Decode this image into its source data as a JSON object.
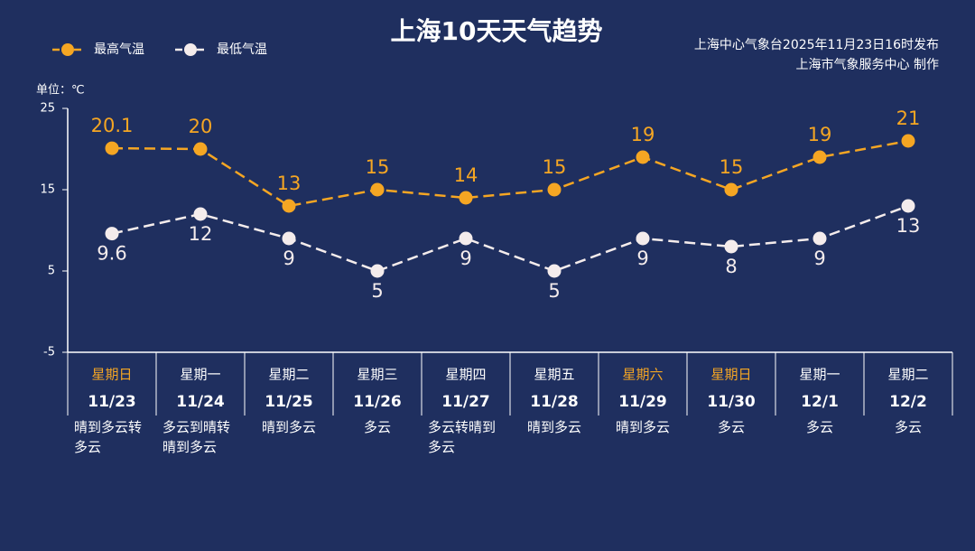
{
  "chart_data": {
    "type": "line",
    "title": "上海10天天气趋势",
    "source_lines": [
      "上海中心气象台2025年11月23日16时发布",
      "上海市气象服务中心 制作"
    ],
    "unit_label": "单位：℃",
    "categories": [
      "11/23",
      "11/24",
      "11/25",
      "11/26",
      "11/27",
      "11/28",
      "11/29",
      "11/30",
      "12/1",
      "12/2"
    ],
    "weekdays": [
      "星期日",
      "星期一",
      "星期二",
      "星期三",
      "星期四",
      "星期五",
      "星期六",
      "星期日",
      "星期一",
      "星期二"
    ],
    "weekday_colors": [
      "#f5a623",
      "#ffffff",
      "#ffffff",
      "#ffffff",
      "#ffffff",
      "#ffffff",
      "#f5a623",
      "#f5a623",
      "#ffffff",
      "#ffffff"
    ],
    "weather": [
      "晴到多云转多云",
      "多云到晴转晴到多云",
      "晴到多云",
      "多云",
      "多云转晴到多云",
      "晴到多云",
      "晴到多云",
      "多云",
      "多云",
      "多云"
    ],
    "series": [
      {
        "name": "最高气温",
        "color": "#f5a623",
        "values": [
          20.1,
          20,
          13,
          15,
          14,
          15,
          19,
          15,
          19,
          21
        ]
      },
      {
        "name": "最低气温",
        "color": "#f4ecec",
        "values": [
          9.6,
          12,
          9,
          5,
          9,
          5,
          9,
          8,
          9,
          13
        ]
      }
    ],
    "ylim": [
      -5,
      25
    ],
    "yticks": [
      -5,
      5,
      15,
      25
    ],
    "legend": "top-left"
  }
}
